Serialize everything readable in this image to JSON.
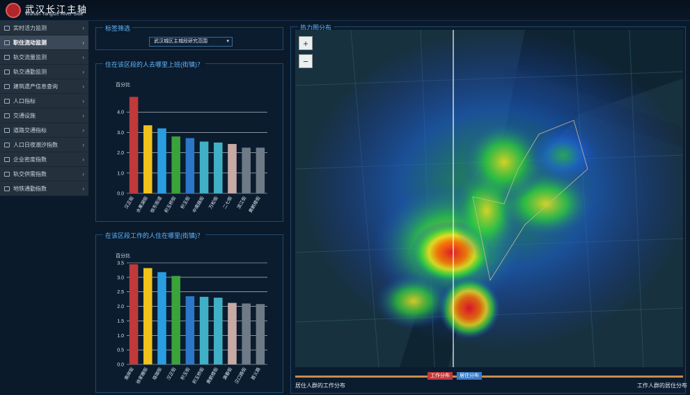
{
  "header": {
    "title": "武汉长江主轴",
    "subtitle": "Wuhan Yangtze River-Side"
  },
  "sidebar": {
    "items": [
      {
        "label": "实时活力监测",
        "icon": "car-icon"
      },
      {
        "label": "职住流动监测",
        "icon": "bus-icon",
        "active": true
      },
      {
        "label": "轨交流量监测",
        "icon": "metro-icon"
      },
      {
        "label": "轨交通勤监测",
        "icon": "metro-icon"
      },
      {
        "label": "建筑遗产信息查询",
        "icon": "edit-icon"
      },
      {
        "label": "人口指标",
        "icon": "graduation-icon"
      },
      {
        "label": "交通设施",
        "icon": "bus-icon"
      },
      {
        "label": "道路交通指标",
        "icon": "location-icon"
      },
      {
        "label": "人口日夜潮汐指数",
        "icon": "people-icon"
      },
      {
        "label": "企业密度指数",
        "icon": "building-icon"
      },
      {
        "label": "轨交供需指数",
        "icon": "metro-icon"
      },
      {
        "label": "地铁通勤指数",
        "icon": "metro-icon"
      }
    ]
  },
  "filter": {
    "title": "标签筛选",
    "selected": "武汉城区主城段研究范围"
  },
  "chart1_panel": {
    "title": "住在该区段的人去哪里上班(街镇)？"
  },
  "chart2_panel": {
    "title": "在该区段工作的人住在哪里(街镇)？"
  },
  "map_panel": {
    "title": "热力图分布",
    "zoom_in": "+",
    "zoom_out": "−"
  },
  "timeline": {
    "tag_work": "工作分布",
    "tag_home": "居住分布",
    "left_label": "居住人群的工作分布",
    "right_label": "工作人群的居住分布"
  },
  "chart_data": [
    {
      "type": "bar",
      "ylabel": "百分比",
      "ylim": [
        0,
        5.0
      ],
      "yticks": [
        "0.0",
        "1.0",
        "2.0",
        "3.0",
        "4.0"
      ],
      "categories": [
        "汉正街",
        "水果湖街",
        "徐东街道",
        "积玉桥街",
        "积玉街",
        "中南路街",
        "万松街",
        "二七街",
        "滨江街",
        "黄鹤楼街"
      ],
      "values": [
        4.75,
        3.35,
        3.2,
        2.8,
        2.72,
        2.55,
        2.5,
        2.43,
        2.25,
        2.25
      ],
      "colors": [
        "#c13a3a",
        "#f2c21b",
        "#2a9de0",
        "#3aa33a",
        "#2b78c8",
        "#3fb0c6",
        "#3fb0c6",
        "#c7aaa4",
        "#6e7a86",
        "#6e7a86"
      ]
    },
    {
      "type": "bar",
      "ylabel": "百分比",
      "ylim": [
        0,
        3.5
      ],
      "yticks": [
        "0.0",
        "0.5",
        "1.0",
        "1.5",
        "2.0",
        "2.5",
        "3.0",
        "3.5"
      ],
      "categories": [
        "南岸街",
        "徐家棚街",
        "珞珈街",
        "汉正街",
        "积玉街",
        "积玉桥街",
        "黄鹤楼街",
        "满春街",
        "汉口路街",
        "首义路"
      ],
      "values": [
        3.45,
        3.32,
        3.18,
        3.05,
        2.35,
        2.33,
        2.3,
        2.12,
        2.1,
        2.08
      ],
      "colors": [
        "#c13a3a",
        "#f2c21b",
        "#2a9de0",
        "#3aa33a",
        "#2b78c8",
        "#3fb0c6",
        "#3fb0c6",
        "#c7aaa4",
        "#6e7a86",
        "#6e7a86"
      ]
    }
  ]
}
